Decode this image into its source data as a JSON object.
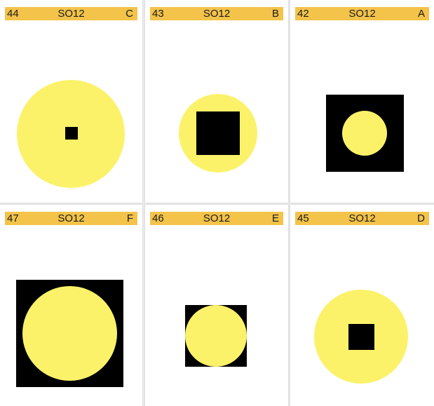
{
  "colors": {
    "band": "#f3c34a",
    "yellow": "#fbf26a",
    "black": "#000000",
    "card": "#ffffff",
    "background": "#e9e9e9"
  },
  "cards": [
    {
      "number": "44",
      "code": "SO12",
      "letter": "C",
      "figure": "small black square inside large yellow circle"
    },
    {
      "number": "43",
      "code": "SO12",
      "letter": "B",
      "figure": "black square inside yellow circle"
    },
    {
      "number": "42",
      "code": "SO12",
      "letter": "A",
      "figure": "yellow circle inside black square"
    },
    {
      "number": "47",
      "code": "SO12",
      "letter": "F",
      "figure": "large yellow circle inside large black square"
    },
    {
      "number": "46",
      "code": "SO12",
      "letter": "E",
      "figure": "yellow circle over black square"
    },
    {
      "number": "45",
      "code": "SO12",
      "letter": "D",
      "figure": "black square inside yellow circle"
    }
  ]
}
